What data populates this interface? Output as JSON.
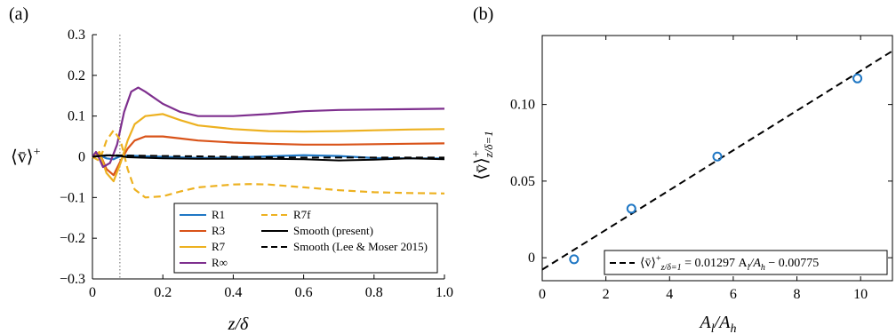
{
  "chart_data": [
    {
      "panel_label": "(a)",
      "type": "line",
      "xlabel": "z/δ",
      "ylabel": "⟨v̄⟩⁺",
      "xlim": [
        0,
        1.0
      ],
      "ylim": [
        -0.3,
        0.3
      ],
      "xticks": [
        0,
        0.2,
        0.4,
        0.6,
        0.8,
        1.0
      ],
      "xtick_labels": [
        "0",
        "0.2",
        "0.4",
        "0.6",
        "0.8",
        "1.0"
      ],
      "yticks": [
        -0.3,
        -0.2,
        -0.1,
        0,
        0.1,
        0.2,
        0.3
      ],
      "ytick_labels": [
        "−0.3",
        "−0.2",
        "−0.1",
        "0",
        "0.1",
        "0.2",
        "0.3"
      ],
      "vline_x": 0.078,
      "legend_position": "bottom-right",
      "series": [
        {
          "name": "R1",
          "color": "#1f77c4",
          "dash": "solid",
          "x": [
            0,
            0.02,
            0.04,
            0.06,
            0.08,
            0.1,
            0.15,
            0.2,
            0.3,
            0.4,
            0.5,
            0.6,
            0.7,
            0.8,
            0.9,
            1.0
          ],
          "y": [
            0,
            0.004,
            -0.004,
            -0.006,
            0.002,
            0.003,
            0.001,
            0.0,
            -0.003,
            -0.002,
            0.001,
            0.004,
            0.002,
            -0.003,
            -0.004,
            -0.004
          ]
        },
        {
          "name": "R3",
          "color": "#d95319",
          "dash": "solid",
          "x": [
            0,
            0.02,
            0.04,
            0.06,
            0.08,
            0.1,
            0.12,
            0.15,
            0.2,
            0.25,
            0.3,
            0.4,
            0.5,
            0.6,
            0.7,
            0.8,
            0.9,
            1.0
          ],
          "y": [
            0,
            0.01,
            -0.03,
            -0.045,
            -0.01,
            0.02,
            0.04,
            0.05,
            0.05,
            0.045,
            0.04,
            0.035,
            0.032,
            0.03,
            0.03,
            0.031,
            0.032,
            0.033
          ]
        },
        {
          "name": "R7",
          "color": "#edb120",
          "dash": "solid",
          "x": [
            0,
            0.02,
            0.04,
            0.06,
            0.08,
            0.1,
            0.12,
            0.15,
            0.2,
            0.25,
            0.3,
            0.4,
            0.5,
            0.6,
            0.7,
            0.8,
            0.9,
            1.0
          ],
          "y": [
            0,
            0.012,
            -0.04,
            -0.06,
            -0.015,
            0.04,
            0.08,
            0.1,
            0.105,
            0.09,
            0.077,
            0.068,
            0.063,
            0.062,
            0.063,
            0.065,
            0.067,
            0.068
          ]
        },
        {
          "name": "R∞",
          "color": "#7e2f8e",
          "dash": "solid",
          "x": [
            0,
            0.01,
            0.02,
            0.03,
            0.05,
            0.07,
            0.09,
            0.11,
            0.13,
            0.15,
            0.2,
            0.25,
            0.3,
            0.4,
            0.5,
            0.6,
            0.7,
            0.8,
            0.9,
            1.0
          ],
          "y": [
            0,
            0.012,
            -0.005,
            -0.025,
            -0.015,
            0.03,
            0.11,
            0.16,
            0.17,
            0.16,
            0.13,
            0.11,
            0.1,
            0.1,
            0.105,
            0.112,
            0.115,
            0.116,
            0.117,
            0.118
          ]
        },
        {
          "name": "R7f",
          "color": "#edb120",
          "dash": "dashed",
          "x": [
            0,
            0.02,
            0.04,
            0.06,
            0.08,
            0.1,
            0.12,
            0.15,
            0.2,
            0.25,
            0.3,
            0.4,
            0.45,
            0.5,
            0.6,
            0.7,
            0.8,
            0.9,
            1.0
          ],
          "y": [
            0,
            -0.01,
            0.04,
            0.065,
            0.04,
            -0.03,
            -0.08,
            -0.1,
            -0.097,
            -0.085,
            -0.075,
            -0.068,
            -0.067,
            -0.068,
            -0.075,
            -0.082,
            -0.087,
            -0.089,
            -0.09
          ]
        },
        {
          "name": "Smooth (present)",
          "color": "#000000",
          "dash": "solid",
          "x": [
            0,
            0.02,
            0.04,
            0.08,
            0.1,
            0.2,
            0.3,
            0.4,
            0.5,
            0.6,
            0.7,
            0.8,
            0.9,
            1.0
          ],
          "y": [
            0,
            0.002,
            0.004,
            0.002,
            -0.001,
            -0.004,
            -0.005,
            -0.005,
            -0.005,
            -0.006,
            -0.009,
            -0.007,
            -0.004,
            -0.006
          ]
        },
        {
          "name": "Smooth (Lee & Moser 2015)",
          "color": "#000000",
          "dash": "dashed",
          "x": [
            0,
            0.05,
            0.1,
            0.2,
            0.3,
            0.4,
            0.5,
            0.6,
            0.7,
            0.8,
            0.9,
            1.0
          ],
          "y": [
            0,
            0.004,
            0.003,
            0.002,
            0.001,
            0.0,
            -0.001,
            -0.002,
            -0.002,
            -0.002,
            -0.002,
            -0.002
          ]
        }
      ]
    },
    {
      "panel_label": "(b)",
      "type": "scatter",
      "xlabel": "A_l/A_h",
      "ylabel": "⟨v̄⟩⁺ z/δ=1",
      "xlim": [
        0,
        11
      ],
      "ylim": [
        -0.015,
        0.145
      ],
      "xticks": [
        0,
        2,
        4,
        6,
        8,
        10
      ],
      "xtick_labels": [
        "0",
        "2",
        "4",
        "6",
        "8",
        "10"
      ],
      "yticks": [
        0,
        0.05,
        0.1
      ],
      "ytick_labels": [
        "0",
        "0.05",
        "0.10"
      ],
      "points": {
        "color": "#1f77c4",
        "x": [
          1.0,
          2.8,
          5.5,
          9.9
        ],
        "y": [
          -0.001,
          0.032,
          0.066,
          0.117
        ]
      },
      "fit_line": {
        "slope": 0.01297,
        "intercept": -0.00775,
        "dash": "dashed",
        "color": "#000000"
      },
      "legend": {
        "position": "bottom-right",
        "label_lhs": "⟨v̄⟩",
        "label_sup": "+",
        "label_sub": "z/δ=1",
        "label_rhs": " = 0.01297 A",
        "label_sub2": "l",
        "label_mid": "/A",
        "label_sub3": "h",
        "label_end": " − 0.00775"
      }
    }
  ],
  "axis_text": {
    "a_xlabel_main": "z",
    "a_xlabel_rest": "/δ",
    "a_ylabel_main": "⟨v̄⟩",
    "a_ylabel_sup": "+",
    "b_xlabel_A": "A",
    "b_xlabel_l": "l",
    "b_xlabel_slash": "/A",
    "b_xlabel_h": "h",
    "b_ylabel_main": "⟨v̄⟩",
    "b_ylabel_sup": "+",
    "b_ylabel_sub": "z/δ=1"
  }
}
